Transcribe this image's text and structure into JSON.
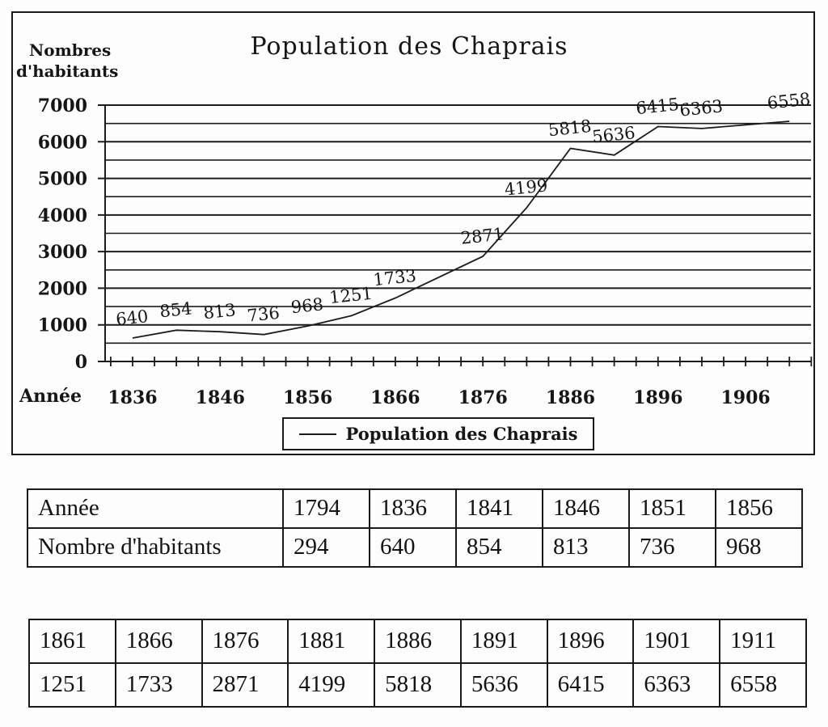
{
  "chart": {
    "title": "Population des Chaprais",
    "y_axis_title_line1": "Nombres",
    "y_axis_title_line2": "d'habitants",
    "x_axis_title": "Année",
    "legend_label": "Population des Chaprais"
  },
  "chart_data": {
    "type": "line",
    "title": "Population des Chaprais",
    "xlabel": "Année",
    "ylabel": "Nombres d'habitants",
    "x": [
      1836,
      1841,
      1846,
      1851,
      1856,
      1861,
      1866,
      1876,
      1881,
      1886,
      1891,
      1896,
      1901,
      1911
    ],
    "values": [
      640,
      854,
      813,
      736,
      968,
      1251,
      1733,
      2871,
      4199,
      5818,
      5636,
      6415,
      6363,
      6558
    ],
    "point_labels": [
      "640",
      "854",
      "813",
      "736",
      "968",
      "1251",
      "1733",
      "2871",
      "4199",
      "5818",
      "5636",
      "6415",
      "6363",
      "6558"
    ],
    "ylim": [
      0,
      7000
    ],
    "y_major_ticks": [
      0,
      1000,
      2000,
      3000,
      4000,
      5000,
      6000,
      7000
    ],
    "y_minor_step": 500,
    "x_tick_labels": [
      "1836",
      "1846",
      "1856",
      "1866",
      "1876",
      "1886",
      "1896",
      "1906"
    ],
    "x_axis_range": [
      1833.5,
      1913.5
    ],
    "x_minor_step": 2.5,
    "grid": true,
    "legend": {
      "position": "bottom",
      "entries": [
        "Population des Chaprais"
      ]
    },
    "line_color": "#1c1c1c",
    "text_color": "#161616"
  },
  "table1": {
    "rows": [
      [
        "Année",
        "1794",
        "1836",
        "1841",
        "1846",
        "1851",
        "1856"
      ],
      [
        "Nombre d'habitants",
        "294",
        "640",
        "854",
        "813",
        "736",
        "968"
      ]
    ]
  },
  "table2": {
    "rows": [
      [
        "1861",
        "1866",
        "1876",
        "1881",
        "1886",
        "1891",
        "1896",
        "1901",
        "1911"
      ],
      [
        "1251",
        "1733",
        "2871",
        "4199",
        "5818",
        "5636",
        "6415",
        "6363",
        "6558"
      ]
    ]
  }
}
